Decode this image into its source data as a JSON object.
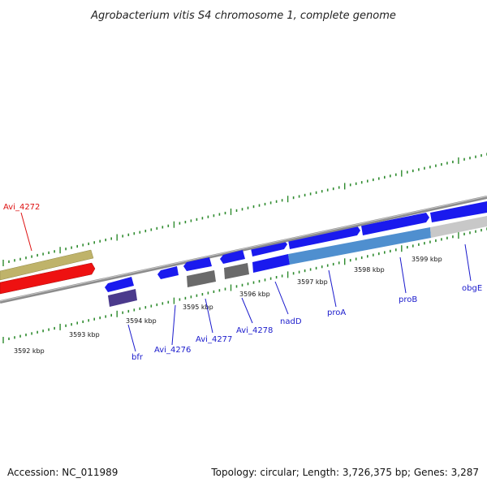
{
  "title": "Agrobacterium vitis S4 chromosome 1, complete genome",
  "footer": {
    "accession": "Accession: NC_011989",
    "summary": "Topology: circular; Length: 3,726,375 bp; Genes: 3,287"
  },
  "colors": {
    "backbone": "#8c8c8c",
    "tick": "#2e8b2e",
    "cds_forward": "#1a1aee",
    "cds_reverse_gray": "#6a6a6a",
    "cds_reverse_purple": "#4b3a8c",
    "gene_red": "#ee1111",
    "gene_khaki": "#bfb36a",
    "gene_lightblue": "#4f8fcf",
    "gene_silver": "#c8c8c8",
    "label_blue": "#1a1acc",
    "label_red": "#dd1111"
  },
  "ticks": {
    "labels": [
      "3592 kbp",
      "3593 kbp",
      "3594 kbp",
      "3595 kbp",
      "3596 kbp",
      "3597 kbp",
      "3598 kbp",
      "3599 kbp"
    ]
  },
  "genes": [
    {
      "name": "Avi_4272",
      "color": "label_red"
    },
    {
      "name": "bfr",
      "color": "label_blue"
    },
    {
      "name": "Avi_4276",
      "color": "label_blue"
    },
    {
      "name": "Avi_4277",
      "color": "label_blue"
    },
    {
      "name": "Avi_4278",
      "color": "label_blue"
    },
    {
      "name": "nadD",
      "color": "label_blue"
    },
    {
      "name": "proA",
      "color": "label_blue"
    },
    {
      "name": "proB",
      "color": "label_blue"
    },
    {
      "name": "obgE",
      "color": "label_blue"
    }
  ]
}
